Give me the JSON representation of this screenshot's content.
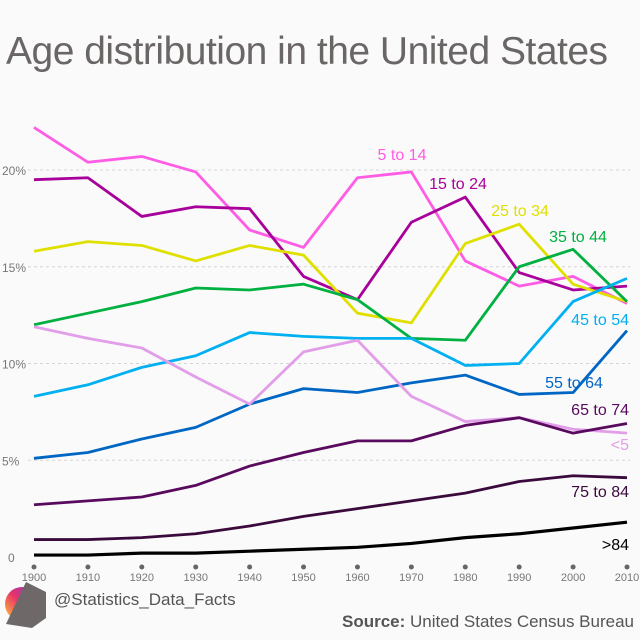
{
  "title": "Age distribution in the United States",
  "handle": "@Statistics_Data_Facts",
  "source_label": "Source:",
  "source_text": "United States Census Bureau",
  "chart_data": {
    "type": "line",
    "title": "Age distribution in the United States",
    "x": [
      1900,
      1910,
      1920,
      1930,
      1940,
      1950,
      1960,
      1970,
      1980,
      1990,
      2000,
      2010
    ],
    "x_tick_labels": [
      "1900",
      "1910",
      "1920",
      "1930",
      "1940",
      "1950",
      "1960",
      "1970",
      "1980",
      "1990",
      "2000",
      "2010"
    ],
    "y_ticks": [
      0,
      5,
      10,
      15,
      20
    ],
    "y_tick_labels": [
      "0",
      "5%",
      "10%",
      "15%",
      "20%"
    ],
    "ylim": [
      0,
      23
    ],
    "grid": "horizontal dashed",
    "legend": "inline labels at line ends",
    "series": [
      {
        "name": "5 to 14",
        "color": "#ff5ce6",
        "values": [
          22.2,
          20.4,
          20.7,
          19.9,
          16.9,
          16.0,
          19.6,
          19.9,
          15.3,
          14.0,
          14.5,
          13.1
        ]
      },
      {
        "name": "15 to 24",
        "color": "#a8009a",
        "values": [
          19.5,
          19.6,
          17.6,
          18.1,
          18.0,
          14.5,
          13.3,
          17.3,
          18.6,
          14.7,
          13.8,
          14.0
        ]
      },
      {
        "name": "25 to 34",
        "color": "#dfe000",
        "values": [
          15.8,
          16.3,
          16.1,
          15.3,
          16.1,
          15.6,
          12.6,
          12.1,
          16.2,
          17.2,
          14.1,
          13.2
        ]
      },
      {
        "name": "35 to 44",
        "color": "#00b040",
        "values": [
          12.0,
          12.6,
          13.2,
          13.9,
          13.8,
          14.1,
          13.3,
          11.3,
          11.2,
          15.0,
          15.9,
          13.2
        ]
      },
      {
        "name": "45 to 54",
        "color": "#00b0f0",
        "values": [
          8.3,
          8.9,
          9.8,
          10.4,
          11.6,
          11.4,
          11.3,
          11.3,
          9.9,
          10.0,
          13.2,
          14.4
        ]
      },
      {
        "name": "55 to 64",
        "color": "#0066c4",
        "values": [
          5.1,
          5.4,
          6.1,
          6.7,
          7.9,
          8.7,
          8.5,
          9.0,
          9.4,
          8.4,
          8.5,
          11.7
        ]
      },
      {
        "name": "<5",
        "color": "#e29ee8",
        "values": [
          11.9,
          11.3,
          10.8,
          9.3,
          7.9,
          10.6,
          11.2,
          8.3,
          7.0,
          7.2,
          6.6,
          6.4
        ]
      },
      {
        "name": "65 to 74",
        "color": "#5a0a5e",
        "values": [
          2.7,
          2.9,
          3.1,
          3.7,
          4.7,
          5.4,
          6.0,
          6.0,
          6.8,
          7.2,
          6.4,
          6.9
        ]
      },
      {
        "name": "75 to 84",
        "color": "#3a0a3c",
        "values": [
          0.9,
          0.9,
          1.0,
          1.2,
          1.6,
          2.1,
          2.5,
          2.9,
          3.3,
          3.9,
          4.2,
          4.1
        ]
      },
      {
        "name": ">84",
        "color": "#000000",
        "values": [
          0.1,
          0.1,
          0.2,
          0.2,
          0.3,
          0.4,
          0.5,
          0.7,
          1.0,
          1.2,
          1.5,
          1.8
        ]
      }
    ]
  }
}
